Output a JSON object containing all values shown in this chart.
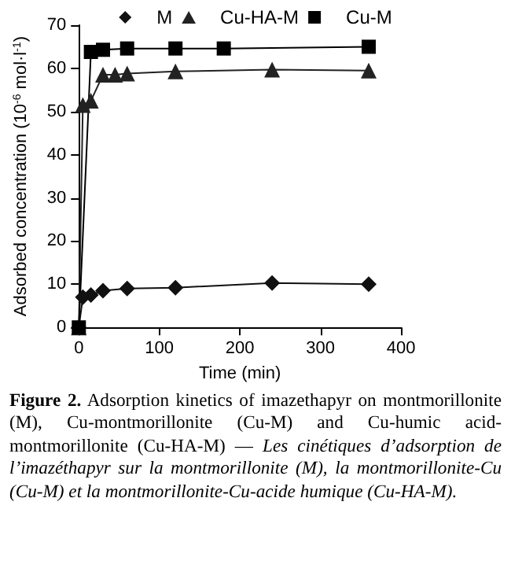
{
  "chart_data": {
    "type": "line",
    "xlabel": "Time (min)",
    "ylabel": "Adsorbed concentration (10$^{-6}$ mol·l$^{-1}$)",
    "xlim": [
      0,
      400
    ],
    "xticks": [
      0,
      100,
      200,
      300,
      400
    ],
    "ylim": [
      0,
      70
    ],
    "yticks": [
      0,
      10,
      20,
      30,
      40,
      50,
      60,
      70
    ],
    "grid": false,
    "legend": "top",
    "line_style": "solid",
    "series": [
      {
        "name": "M",
        "color": "#111111",
        "marker": "diamond",
        "x": [
          0,
          5,
          15,
          30,
          60,
          120,
          240,
          360
        ],
        "values": [
          0,
          7,
          7.5,
          8.5,
          9,
          9.2,
          10.3,
          10
        ]
      },
      {
        "name": "Cu-HA-M",
        "color": "#222222",
        "marker": "triangle",
        "x": [
          0,
          5,
          15,
          30,
          45,
          60,
          120,
          240,
          360
        ],
        "values": [
          0,
          51.5,
          52.5,
          58.5,
          58.5,
          58.8,
          59.3,
          59.7,
          59.5
        ]
      },
      {
        "name": "Cu-M",
        "color": "#000000",
        "marker": "square",
        "x": [
          0,
          15,
          30,
          60,
          120,
          180,
          360
        ],
        "values": [
          0,
          63.8,
          64.3,
          64.6,
          64.6,
          64.6,
          65
        ]
      }
    ],
    "annotations": [
      "Figure 2.",
      "Adsorption kinetics of imazethapyr on montmorillonite (M), Cu-montmorillonite (Cu-M) and Cu-humic acid-montmorillonite (Cu-HA-M) —",
      "Les cinétiques d’adsorption de l’imazéthapyr sur la montmorillonite (M), la montmorillonite-Cu (Cu-M) et la montmorillonite-Cu-acide humique (Cu-HA-M)."
    ]
  }
}
